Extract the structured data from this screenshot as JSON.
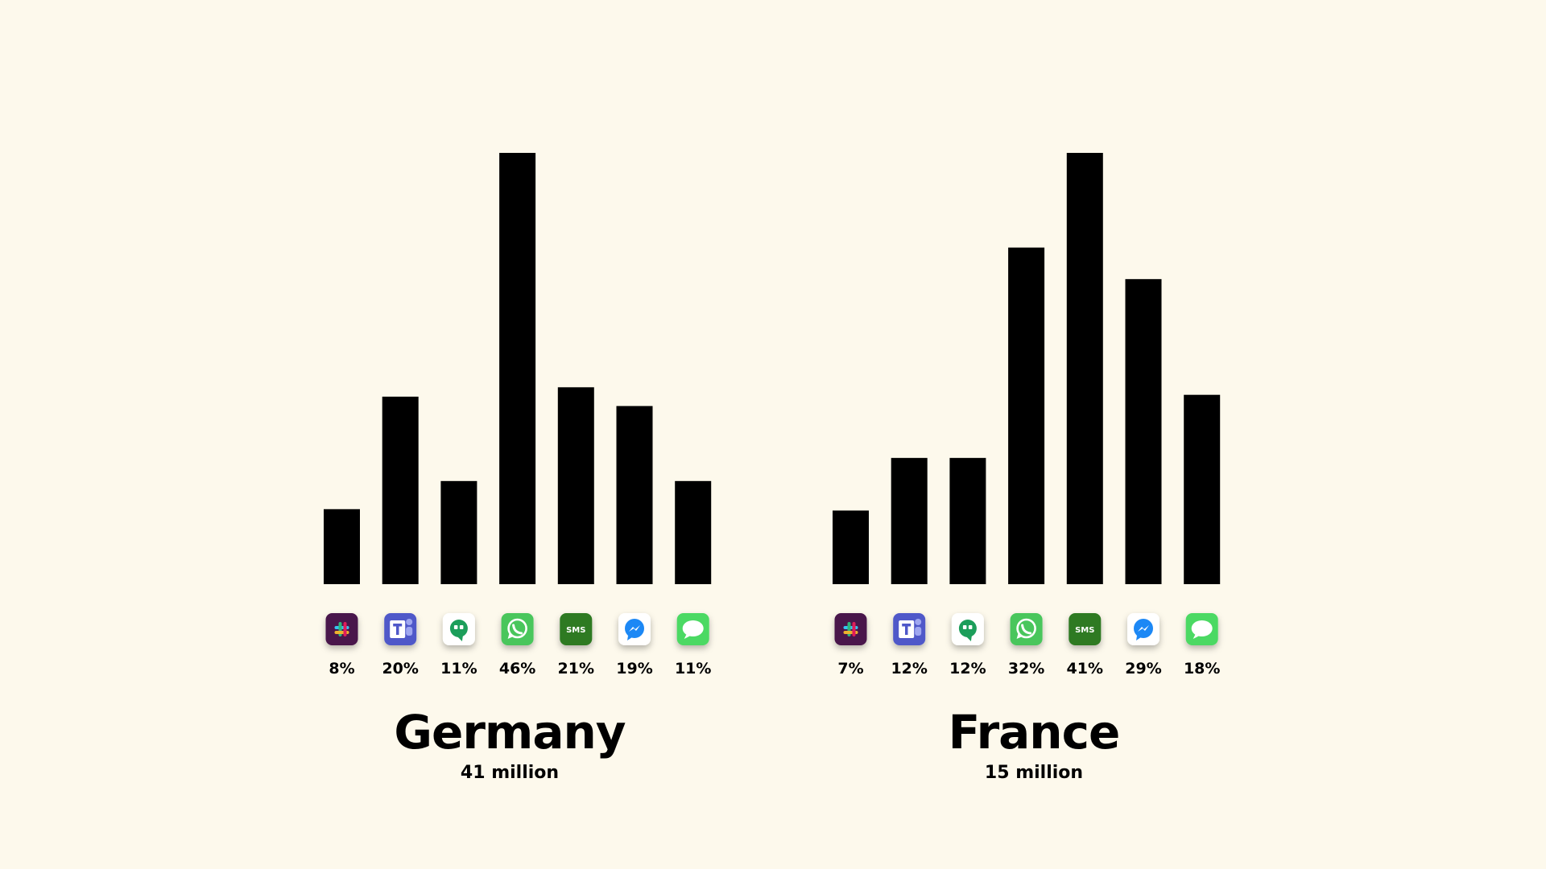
{
  "chart_data": [
    {
      "type": "bar",
      "title": "Germany",
      "subtitle": "41 million",
      "categories": [
        "slack",
        "teams",
        "hangouts",
        "whatsapp",
        "sms",
        "messenger",
        "imessage"
      ],
      "values": [
        8,
        20,
        11,
        46,
        21,
        19,
        11
      ],
      "value_labels": [
        "8%",
        "20%",
        "11%",
        "46%",
        "21%",
        "19%",
        "11%"
      ],
      "ylim": [
        0,
        46
      ],
      "grid": false,
      "axes_visible": false
    },
    {
      "type": "bar",
      "title": "France",
      "subtitle": "15 million",
      "categories": [
        "slack",
        "teams",
        "hangouts",
        "whatsapp",
        "sms",
        "messenger",
        "imessage"
      ],
      "values": [
        7,
        12,
        12,
        32,
        41,
        29,
        18
      ],
      "value_labels": [
        "7%",
        "12%",
        "12%",
        "32%",
        "41%",
        "29%",
        "18%"
      ],
      "ylim": [
        0,
        41
      ],
      "grid": false,
      "axes_visible": false
    }
  ],
  "icons": {
    "slack": "slack-icon",
    "teams": "teams-icon",
    "hangouts": "hangouts-icon",
    "whatsapp": "whatsapp-icon",
    "sms": "sms-icon",
    "messenger": "messenger-icon",
    "imessage": "imessage-icon"
  },
  "sms_icon_text": "SMS",
  "colors": {
    "background": "#fdf9ec",
    "bar": "#000000",
    "slack": "#4a154b",
    "teams": "#5059c9",
    "hangouts": "#1e9e5a",
    "whatsapp": "#48c65b",
    "sms": "#2f7a23",
    "messenger": "#1e88f5",
    "imessage": "#4cd964"
  }
}
